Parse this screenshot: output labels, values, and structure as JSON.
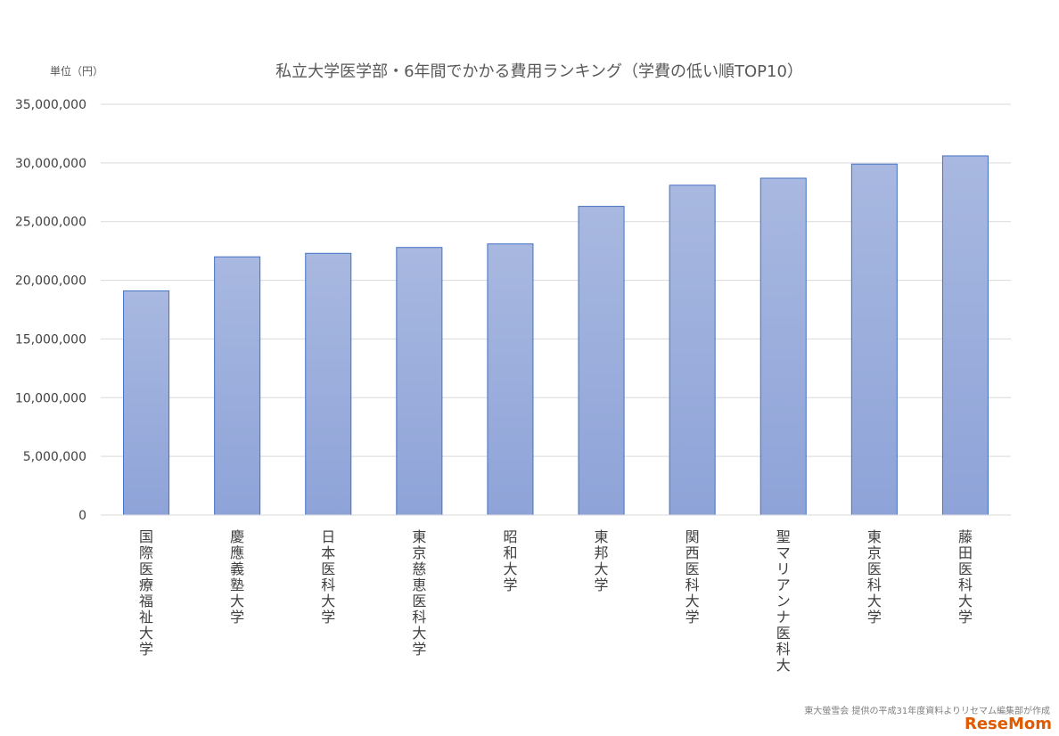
{
  "chart_data": {
    "type": "bar",
    "title": "私立大学医学部・6年間でかかる費用ランキング（学費の低い順TOP10）",
    "unit_label": "単位（円）",
    "categories": [
      "国際医療福祉大学",
      "慶應義塾大学",
      "日本医科大学",
      "東京慈恵医科大学",
      "昭和大学",
      "東邦大学",
      "関西医科大学",
      "聖マリアンナ医科大",
      "東京医科大学",
      "藤田医科大学"
    ],
    "values": [
      19100000,
      22000000,
      22300000,
      22800000,
      23100000,
      26300000,
      28100000,
      28700000,
      29900000,
      30600000
    ],
    "ylim": [
      0,
      35000000
    ],
    "y_ticks": [
      {
        "value": 0,
        "label": "0"
      },
      {
        "value": 5000000,
        "label": "5,000,000"
      },
      {
        "value": 10000000,
        "label": "10,000,000"
      },
      {
        "value": 15000000,
        "label": "15,000,000"
      },
      {
        "value": 20000000,
        "label": "20,000,000"
      },
      {
        "value": 25000000,
        "label": "25,000,000"
      },
      {
        "value": 30000000,
        "label": "30,000,000"
      },
      {
        "value": 35000000,
        "label": "35,000,000"
      }
    ],
    "grid": true,
    "bar_color_top": "#a8b8e0",
    "bar_color_bottom": "#8ea3d8",
    "bar_border_color": "#4472c4"
  },
  "source_note": "東大螢雪会 提供の平成31年度資料よりリセマム編集部が作成",
  "watermark": "ReseMom"
}
